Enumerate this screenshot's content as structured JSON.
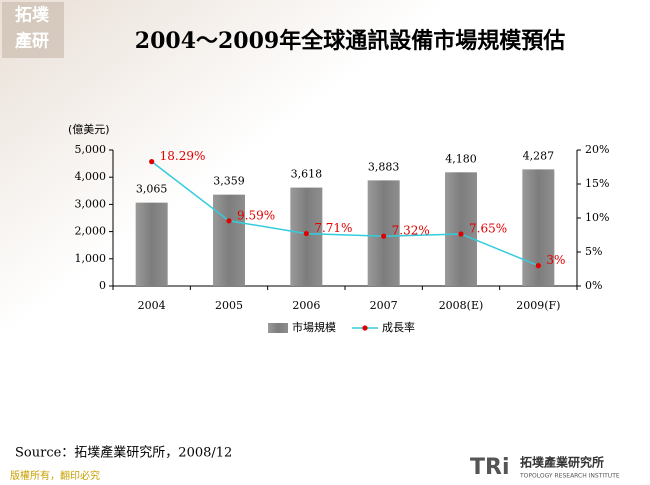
{
  "slide": {
    "logo": [
      "拓墣",
      "產研"
    ],
    "source": "Source：拓墣產業研究所，2008/12",
    "footer": "版權所有，翻印必究",
    "brand_mark": "TRi",
    "brand_name": "拓墣產業研究所",
    "brand_english": "TOPOLOGY RESEARCH INSTITUTE"
  },
  "chart_data": {
    "type": "bar-line",
    "title": "2004～2009年全球通訊設備市場規模預估",
    "y_label": "(億美元)",
    "categories": [
      "2004",
      "2005",
      "2006",
      "2007",
      "2008(E)",
      "2009(F)"
    ],
    "series": [
      {
        "name": "市場規模",
        "type": "bar",
        "color": "#8c8c8c",
        "values": [
          3065,
          3359,
          3618,
          3883,
          4180,
          4287
        ],
        "value_labels": [
          "3,065",
          "3,359",
          "3,618",
          "3,883",
          "4,180",
          "4,287"
        ]
      },
      {
        "name": "成長率",
        "type": "line",
        "axis": "y2",
        "color": "#33ccdd",
        "marker_color": "#e00000",
        "values": [
          18.29,
          9.59,
          7.71,
          7.32,
          7.65,
          3
        ],
        "value_labels": [
          "18.29%",
          "9.59%",
          "7.71%",
          "7.32%",
          "7.65%",
          "3%"
        ]
      }
    ],
    "ylim": [
      0,
      5000
    ],
    "yticks": [
      0,
      {
        "value": 1000,
        "label": "1,000"
      },
      {
        "value": 2000,
        "label": "2,000"
      },
      {
        "value": 3000,
        "label": "3,000"
      },
      {
        "value": 4000,
        "label": "4,000"
      },
      {
        "value": 5000,
        "label": "5,000"
      }
    ],
    "y2lim": [
      0,
      20
    ],
    "y2ticks": [
      {
        "value": 0,
        "label": "0%"
      },
      {
        "value": 5,
        "label": "5%"
      },
      {
        "value": 10,
        "label": "10%"
      },
      {
        "value": 15,
        "label": "15%"
      },
      {
        "value": 20,
        "label": "20%"
      }
    ],
    "legend": "bottom"
  }
}
